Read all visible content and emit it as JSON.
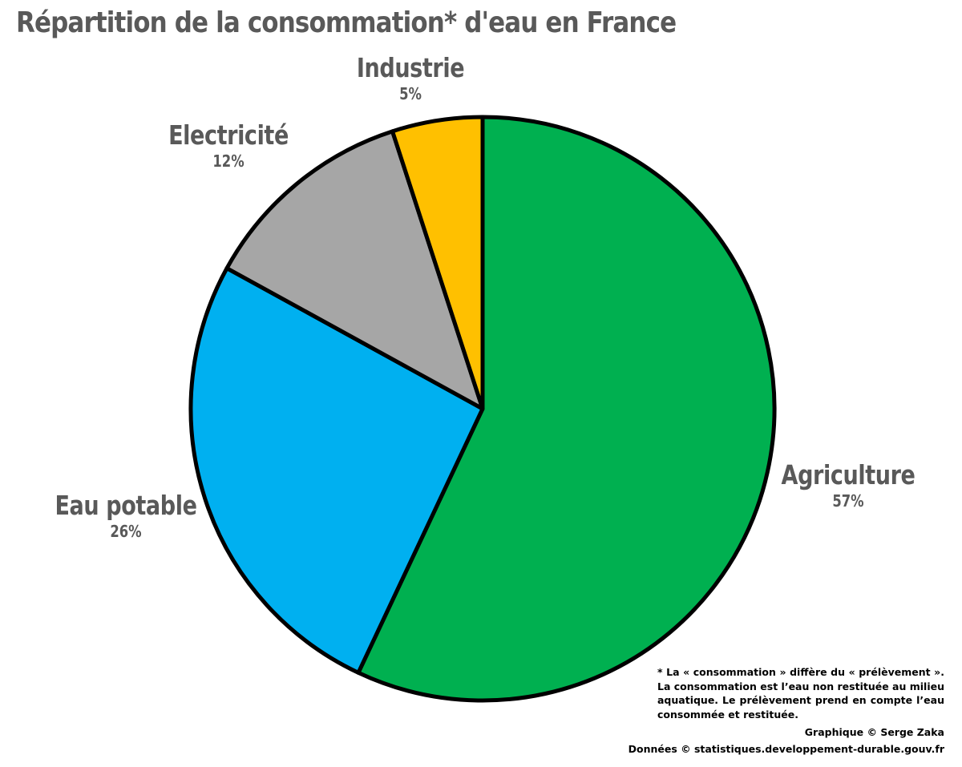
{
  "chart_data": {
    "type": "pie",
    "title": "Répartition de la consommation* d'eau en France",
    "slices": [
      {
        "label": "Agriculture",
        "value": 57,
        "value_text": "57%",
        "color": "#00B050"
      },
      {
        "label": "Eau potable",
        "value": 26,
        "value_text": "26%",
        "color": "#00B0F0"
      },
      {
        "label": "Electricité",
        "value": 12,
        "value_text": "12%",
        "color": "#A6A6A6"
      },
      {
        "label": "Industrie",
        "value": 5,
        "value_text": "5%",
        "color": "#FFC000"
      }
    ],
    "start": "12 o'clock",
    "direction": "clockwise",
    "slice_outline_color": "#000000",
    "label_color": "#595959"
  },
  "footnote": "* La « consommation » diffère du « prélèvement ». La consommation est l’eau non restituée au milieu aquatique. Le prélèvement prend en compte l’eau consommée et restituée.",
  "credits": {
    "graphic": "Graphique © Serge Zaka",
    "source": "Données © statistiques.developpement-durable.gouv.fr"
  }
}
